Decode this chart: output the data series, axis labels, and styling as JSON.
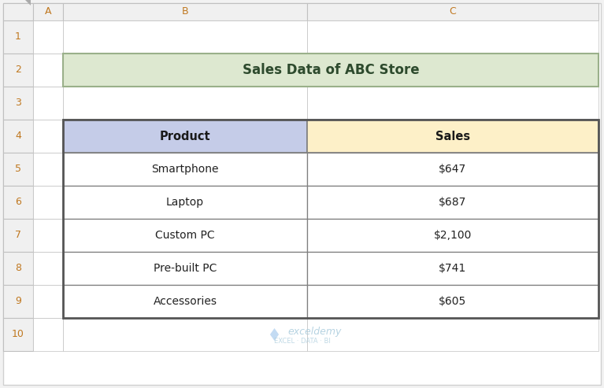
{
  "title": "Sales Data of ABC Store",
  "title_bg_color": "#dde8d0",
  "title_border_color": "#9ab08a",
  "header_product_bg": "#c5cce8",
  "header_sales_bg": "#fdf0c8",
  "header_border_color": "#7f7f7f",
  "cell_border_color": "#7f7f7f",
  "col_labels": [
    "A",
    "B",
    "C"
  ],
  "products": [
    "Smartphone",
    "Laptop",
    "Custom PC",
    "Pre-built PC",
    "Accessories"
  ],
  "sales": [
    "$647",
    "$687",
    "$2,100",
    "$741",
    "$605"
  ],
  "bg_color": "#f2f2f2",
  "spreadsheet_bg": "#ffffff",
  "row_header_bg": "#f0f0f0",
  "col_header_bg": "#f0f0f0",
  "header_ec": "#c0c0c0",
  "exceldemy_text": "exceldemy",
  "exceldemy_sub": "EXCEL · DATA · BI",
  "exceldemy_color": "#aaccdd",
  "exceldemy_sub_color": "#aaccdd",
  "outer_border_color": "#d0d0d0",
  "table_border_color": "#555555",
  "row_num_color": "#c07820",
  "col_lbl_color": "#c07820"
}
